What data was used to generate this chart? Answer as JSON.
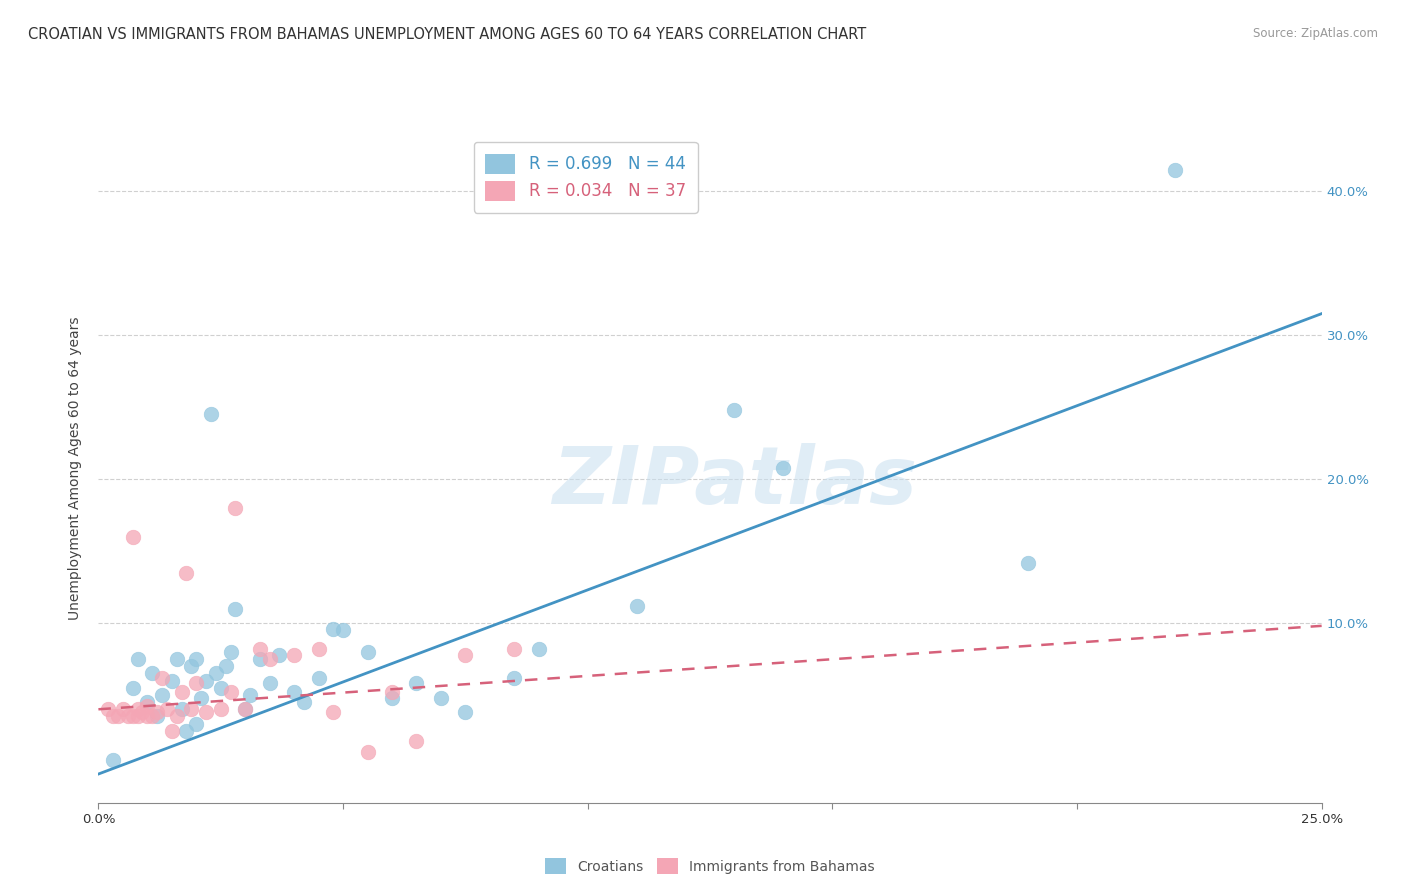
{
  "title": "CROATIAN VS IMMIGRANTS FROM BAHAMAS UNEMPLOYMENT AMONG AGES 60 TO 64 YEARS CORRELATION CHART",
  "source": "Source: ZipAtlas.com",
  "ylabel": "Unemployment Among Ages 60 to 64 years",
  "xlim": [
    0.0,
    0.25
  ],
  "ylim": [
    -0.025,
    0.44
  ],
  "xticks": [
    0.0,
    0.05,
    0.1,
    0.15,
    0.2,
    0.25
  ],
  "xtick_labels": [
    "0.0%",
    "",
    "",
    "",
    "",
    "25.0%"
  ],
  "yticks_right": [
    0.1,
    0.2,
    0.3,
    0.4
  ],
  "ytick_labels_right": [
    "10.0%",
    "20.0%",
    "30.0%",
    "40.0%"
  ],
  "legend1_label": "R = 0.699   N = 44",
  "legend2_label": "R = 0.034   N = 37",
  "blue_color": "#92c5de",
  "pink_color": "#f4a6b5",
  "blue_line_color": "#4393c3",
  "pink_line_color": "#d6617a",
  "watermark": "ZIPatlas",
  "blue_dots_x": [
    0.003,
    0.007,
    0.008,
    0.01,
    0.011,
    0.012,
    0.013,
    0.015,
    0.016,
    0.017,
    0.018,
    0.019,
    0.02,
    0.02,
    0.021,
    0.022,
    0.023,
    0.024,
    0.025,
    0.026,
    0.027,
    0.028,
    0.03,
    0.031,
    0.033,
    0.035,
    0.037,
    0.04,
    0.042,
    0.045,
    0.048,
    0.05,
    0.055,
    0.06,
    0.065,
    0.07,
    0.075,
    0.085,
    0.09,
    0.11,
    0.13,
    0.14,
    0.19,
    0.22
  ],
  "blue_dots_y": [
    0.005,
    0.055,
    0.075,
    0.045,
    0.065,
    0.035,
    0.05,
    0.06,
    0.075,
    0.04,
    0.025,
    0.07,
    0.03,
    0.075,
    0.048,
    0.06,
    0.245,
    0.065,
    0.055,
    0.07,
    0.08,
    0.11,
    0.04,
    0.05,
    0.075,
    0.058,
    0.078,
    0.052,
    0.045,
    0.062,
    0.096,
    0.095,
    0.08,
    0.048,
    0.058,
    0.048,
    0.038,
    0.062,
    0.082,
    0.112,
    0.248,
    0.208,
    0.142,
    0.415
  ],
  "pink_dots_x": [
    0.002,
    0.003,
    0.004,
    0.005,
    0.006,
    0.007,
    0.007,
    0.008,
    0.008,
    0.009,
    0.01,
    0.01,
    0.011,
    0.012,
    0.013,
    0.014,
    0.015,
    0.016,
    0.017,
    0.018,
    0.019,
    0.02,
    0.022,
    0.025,
    0.027,
    0.028,
    0.03,
    0.033,
    0.035,
    0.04,
    0.045,
    0.048,
    0.055,
    0.06,
    0.065,
    0.075,
    0.085
  ],
  "pink_dots_y": [
    0.04,
    0.035,
    0.035,
    0.04,
    0.035,
    0.035,
    0.16,
    0.04,
    0.035,
    0.038,
    0.035,
    0.042,
    0.035,
    0.038,
    0.062,
    0.04,
    0.025,
    0.035,
    0.052,
    0.135,
    0.04,
    0.058,
    0.038,
    0.04,
    0.052,
    0.18,
    0.04,
    0.082,
    0.075,
    0.078,
    0.082,
    0.038,
    0.01,
    0.052,
    0.018,
    0.078,
    0.082
  ],
  "blue_line_x": [
    0.0,
    0.25
  ],
  "blue_line_y": [
    -0.005,
    0.315
  ],
  "pink_line_x": [
    0.0,
    0.25
  ],
  "pink_line_y": [
    0.04,
    0.098
  ],
  "grid_color": "#d0d0d0",
  "background_color": "#ffffff",
  "title_fontsize": 10.5,
  "axis_label_fontsize": 10,
  "tick_fontsize": 9.5
}
